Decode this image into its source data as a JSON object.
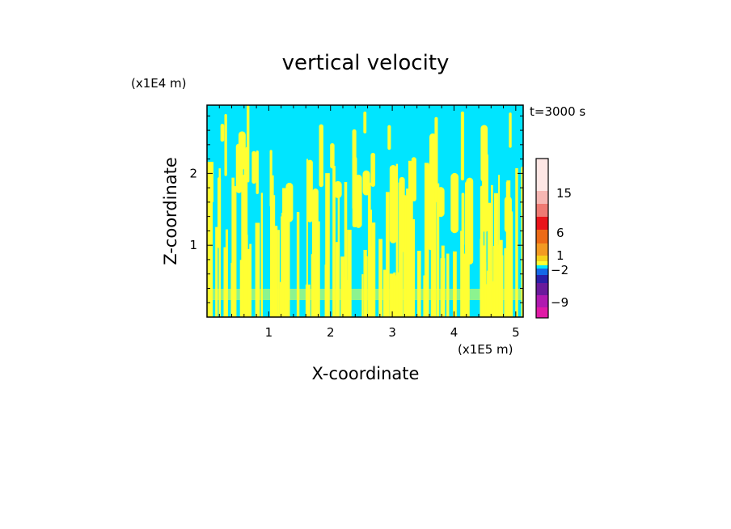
{
  "chart_data": {
    "type": "heatmap",
    "title": "vertical velocity",
    "xlabel": "X-coordinate",
    "ylabel": "Z-coordinate",
    "x_unit": "(x1E5 m)",
    "y_unit": "(x1E4 m)",
    "time_label": "t=3000 s",
    "xlim": [
      0,
      5.12
    ],
    "ylim": [
      0,
      2.95
    ],
    "x_ticks": [
      "1",
      "2",
      "3",
      "4",
      "5"
    ],
    "y_ticks": [
      "1",
      "2"
    ],
    "colorbar": {
      "tick_labels": [
        "15",
        "6",
        "1",
        "−2",
        "−9"
      ],
      "levels_top_to_bottom": [
        {
          "color": "#fde6e4"
        },
        {
          "color": "#f6b7b3"
        },
        {
          "color": "#ef7a73"
        },
        {
          "color": "#e9141a"
        },
        {
          "color": "#ec6a16"
        },
        {
          "color": "#f39a22"
        },
        {
          "color": "#f6d21c"
        },
        {
          "color": "#ffff33"
        },
        {
          "color": "#00e5ff"
        },
        {
          "color": "#1468e8"
        },
        {
          "color": "#2a1fa8"
        },
        {
          "color": "#6a1a9c"
        },
        {
          "color": "#b01ab0"
        },
        {
          "color": "#e01aa6"
        }
      ]
    },
    "field_colors": {
      "background": "#00e5ff",
      "updraft": "#ffff33"
    }
  }
}
